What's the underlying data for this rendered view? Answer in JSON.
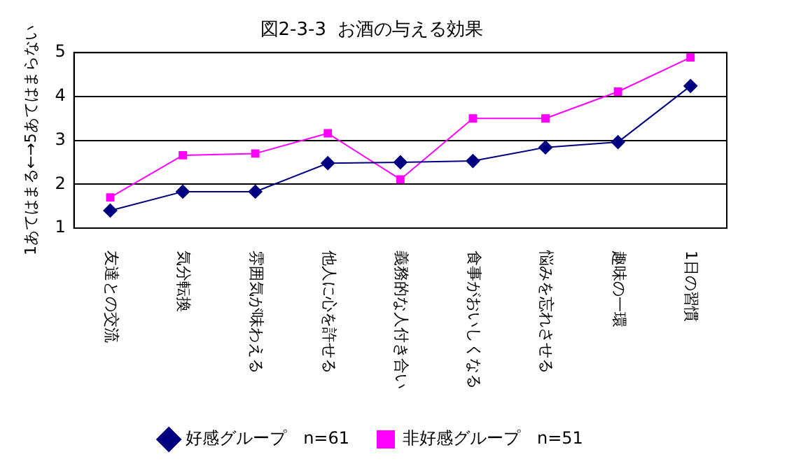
{
  "chart_data": {
    "type": "line",
    "title": "図2-3-3  お酒の与える効果",
    "ylabel": "1あてはまる←→5あてはまらない",
    "categories": [
      "友達との交流",
      "気分転換",
      "雰囲気が味わえる",
      "他人に心を許せる",
      "義務的な人付き合い",
      "食事がおいしくなる",
      "悩みを忘れさせる",
      "趣味の一環",
      "1日の習慣"
    ],
    "series": [
      {
        "name": "好感グループ　n=61",
        "color": "#000080",
        "marker": "diamond",
        "values": [
          1.4,
          1.83,
          1.83,
          2.48,
          2.5,
          2.53,
          2.84,
          2.96,
          4.24
        ]
      },
      {
        "name": "非好感グループ　n=51",
        "color": "#ff00ff",
        "marker": "square",
        "values": [
          1.7,
          2.66,
          2.7,
          3.16,
          2.11,
          3.5,
          3.5,
          4.11,
          4.89
        ]
      }
    ],
    "ylim": [
      1,
      5
    ],
    "yticks": [
      1,
      2,
      3,
      4,
      5
    ],
    "grid": "y",
    "legend": "bottom",
    "line_style": "solid"
  }
}
